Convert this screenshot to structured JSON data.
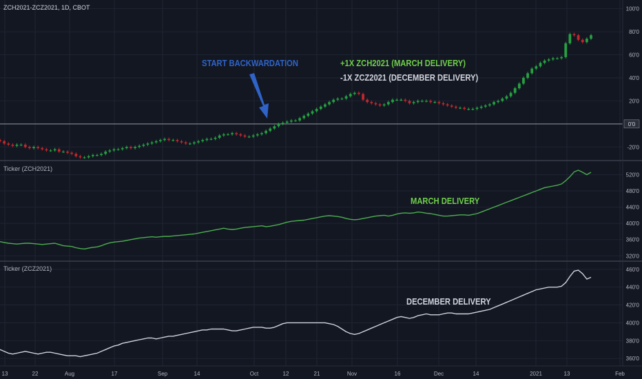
{
  "header": {
    "symbol_title": "ZCH2021-ZCZ2021, 1D, CBOT",
    "ticker_zch": "Ticker (ZCH2021)",
    "ticker_zcz": "Ticker (ZCZ2021)"
  },
  "annotations": {
    "backwardation": "START BACKWARDATION",
    "long_leg": "+1X ZCH2021 (MARCH DELIVERY)",
    "short_leg": "-1X ZCZ2021 (DECEMBER DELIVERY)",
    "march": "MARCH DELIVERY",
    "december": "DECEMBER DELIVERY"
  },
  "colors": {
    "background": "#131722",
    "grid": "#1f2433",
    "axis_text": "#b2b5be",
    "up_candle": "#26a041",
    "down_candle": "#c2272d",
    "march_line": "#4caf50",
    "december_line": "#d1d4dc",
    "annotation_blue": "#2f63c7",
    "annotation_green": "#6fcf4a",
    "annotation_white": "#d1d4dc",
    "zero_line": "#9598a1"
  },
  "chart_data": [
    {
      "type": "candlestick",
      "title": "ZCH2021-ZCZ2021, 1D, CBOT",
      "y_ticks": [
        "-20'0",
        "0'0",
        "20'0",
        "40'0",
        "60'0",
        "80'0",
        "100'0"
      ],
      "ylim": [
        -30,
        104
      ],
      "reference_line": 0,
      "reference_label": "0'0",
      "close_series": [
        -15,
        -17,
        -18,
        -19,
        -18,
        -18,
        -20,
        -21,
        -20,
        -21,
        -22,
        -23,
        -23,
        -22,
        -24,
        -24,
        -25,
        -26,
        -28,
        -29,
        -29,
        -28,
        -27,
        -27,
        -26,
        -24,
        -23,
        -22,
        -22,
        -21,
        -20,
        -21,
        -20,
        -19,
        -18,
        -17,
        -16,
        -15,
        -14,
        -13,
        -14,
        -14,
        -15,
        -16,
        -17,
        -17,
        -16,
        -15,
        -14,
        -13,
        -13,
        -12,
        -10,
        -9,
        -9,
        -8,
        -9,
        -10,
        -11,
        -11,
        -10,
        -9,
        -8,
        -6,
        -4,
        -2,
        0,
        1,
        2,
        3,
        3,
        5,
        7,
        9,
        11,
        13,
        15,
        17,
        19,
        21,
        22,
        22,
        24,
        26,
        27,
        26,
        21,
        19,
        18,
        17,
        16,
        17,
        19,
        21,
        21,
        21,
        20,
        18,
        19,
        20,
        20,
        20,
        19,
        19,
        18,
        17,
        16,
        15,
        14,
        14,
        13,
        13,
        13,
        14,
        15,
        16,
        17,
        19,
        20,
        22,
        24,
        27,
        31,
        35,
        40,
        44,
        48,
        50,
        53,
        55,
        56,
        57,
        57,
        58,
        70,
        78,
        77,
        73,
        71,
        74,
        77
      ],
      "x_ticks": [
        "13",
        "22",
        "Aug",
        "17",
        "Sep",
        "14",
        "Oct",
        "12",
        "21",
        "Nov",
        "16",
        "Dec",
        "14",
        "2021",
        "13",
        "Feb"
      ]
    },
    {
      "type": "line",
      "series_name": "MARCH DELIVERY",
      "legend": "Ticker (ZCH2021)",
      "y_ticks": [
        "320'0",
        "360'0",
        "400'0",
        "440'0",
        "480'0",
        "520'0"
      ],
      "ylim": [
        312,
        548
      ],
      "values": [
        355,
        353,
        351,
        350,
        349,
        350,
        351,
        351,
        350,
        349,
        348,
        349,
        350,
        351,
        348,
        345,
        344,
        343,
        340,
        338,
        337,
        339,
        341,
        342,
        345,
        349,
        352,
        354,
        355,
        356,
        358,
        360,
        362,
        364,
        365,
        366,
        367,
        366,
        367,
        368,
        368,
        369,
        370,
        371,
        372,
        373,
        374,
        376,
        378,
        380,
        382,
        384,
        386,
        388,
        386,
        385,
        386,
        388,
        390,
        391,
        392,
        393,
        394,
        392,
        393,
        395,
        397,
        400,
        403,
        405,
        406,
        407,
        408,
        410,
        412,
        414,
        416,
        418,
        419,
        418,
        417,
        415,
        412,
        410,
        409,
        410,
        412,
        414,
        416,
        418,
        419,
        420,
        418,
        420,
        423,
        425,
        426,
        425,
        426,
        428,
        427,
        425,
        424,
        422,
        420,
        418,
        418,
        419,
        420,
        421,
        421,
        420,
        422,
        424,
        428,
        432,
        436,
        440,
        444,
        448,
        452,
        456,
        460,
        464,
        468,
        472,
        476,
        480,
        484,
        488,
        490,
        492,
        494,
        497,
        505,
        515,
        527,
        531,
        526,
        520,
        526
      ],
      "x_ticks": [
        "13",
        "22",
        "Aug",
        "17",
        "Sep",
        "14",
        "Oct",
        "12",
        "21",
        "Nov",
        "16",
        "Dec",
        "14",
        "2021",
        "13",
        "Feb"
      ]
    },
    {
      "type": "line",
      "series_name": "DECEMBER DELIVERY",
      "legend": "Ticker (ZCZ2021)",
      "y_ticks": [
        "360'0",
        "380'0",
        "400'0",
        "420'0",
        "440'0",
        "460'0"
      ],
      "ylim": [
        354,
        466
      ],
      "values": [
        370,
        368,
        366,
        365,
        366,
        367,
        368,
        367,
        366,
        365,
        366,
        367,
        367,
        366,
        365,
        364,
        363,
        363,
        363,
        362,
        363,
        364,
        365,
        366,
        368,
        370,
        372,
        374,
        375,
        377,
        378,
        379,
        380,
        381,
        382,
        383,
        383,
        382,
        383,
        384,
        385,
        385,
        386,
        387,
        388,
        389,
        390,
        391,
        392,
        392,
        393,
        393,
        393,
        393,
        392,
        391,
        391,
        392,
        393,
        394,
        395,
        395,
        395,
        394,
        394,
        395,
        397,
        399,
        400,
        400,
        400,
        400,
        400,
        400,
        400,
        400,
        400,
        400,
        399,
        398,
        396,
        393,
        390,
        388,
        387,
        388,
        390,
        392,
        394,
        396,
        398,
        400,
        402,
        404,
        406,
        407,
        406,
        405,
        406,
        408,
        409,
        410,
        409,
        409,
        409,
        410,
        411,
        411,
        410,
        410,
        410,
        410,
        411,
        412,
        413,
        414,
        415,
        417,
        419,
        421,
        423,
        425,
        427,
        429,
        431,
        433,
        435,
        437,
        438,
        439,
        440,
        440,
        440,
        441,
        445,
        452,
        458,
        459,
        455,
        449,
        451
      ],
      "x_ticks": [
        "13",
        "22",
        "Aug",
        "17",
        "Sep",
        "14",
        "Oct",
        "12",
        "21",
        "Nov",
        "16",
        "Dec",
        "14",
        "2021",
        "13",
        "Feb"
      ]
    }
  ]
}
